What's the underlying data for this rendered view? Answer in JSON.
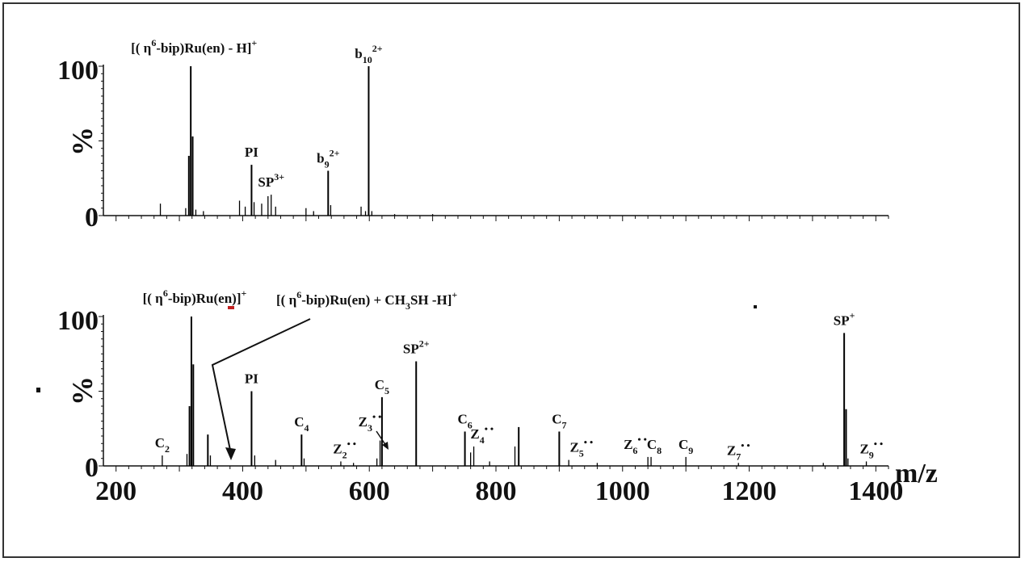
{
  "chart_data": [
    {
      "type": "bar",
      "xlabel": "",
      "ylabel": "%",
      "xlim": [
        180,
        1420
      ],
      "ylim": [
        0,
        100
      ],
      "yticks": [
        "0",
        "100"
      ],
      "peaks": [
        {
          "x": 270,
          "y": 8
        },
        {
          "x": 310,
          "y": 5
        },
        {
          "x": 315,
          "y": 40
        },
        {
          "x": 318,
          "y": 100
        },
        {
          "x": 321,
          "y": 53
        },
        {
          "x": 326,
          "y": 4
        },
        {
          "x": 338,
          "y": 3
        },
        {
          "x": 395,
          "y": 10
        },
        {
          "x": 404,
          "y": 6
        },
        {
          "x": 414,
          "y": 34
        },
        {
          "x": 418,
          "y": 9
        },
        {
          "x": 430,
          "y": 8
        },
        {
          "x": 440,
          "y": 13
        },
        {
          "x": 445,
          "y": 14
        },
        {
          "x": 452,
          "y": 6
        },
        {
          "x": 500,
          "y": 5
        },
        {
          "x": 512,
          "y": 3
        },
        {
          "x": 535,
          "y": 30
        },
        {
          "x": 539,
          "y": 7
        },
        {
          "x": 587,
          "y": 6
        },
        {
          "x": 594,
          "y": 3
        },
        {
          "x": 599,
          "y": 100
        },
        {
          "x": 604,
          "y": 3
        },
        {
          "x": 640,
          "y": 1
        },
        {
          "x": 700,
          "y": 1
        }
      ],
      "annotations": [
        {
          "x": 318,
          "y": 100,
          "base": "[( η",
          "sup": "6",
          "tail": "-bip)Ru(en) -  H]",
          "tailsup": "+"
        },
        {
          "x": 414,
          "y": 34,
          "base": "PI"
        },
        {
          "x": 445,
          "y": 14,
          "base": "SP",
          "sup": "3+"
        },
        {
          "x": 535,
          "y": 30,
          "base": "b",
          "sub": "9",
          "sup": "2+"
        },
        {
          "x": 599,
          "y": 100,
          "base": "b",
          "sub": "10",
          "sup": "2+"
        }
      ]
    },
    {
      "type": "bar",
      "xlabel": "m/z",
      "ylabel": "%",
      "xlim": [
        180,
        1420
      ],
      "ylim": [
        0,
        100
      ],
      "yticks": [
        "0",
        "100"
      ],
      "xticks": [
        "200",
        "400",
        "600",
        "800",
        "1000",
        "1200",
        "1400"
      ],
      "peaks": [
        {
          "x": 273,
          "y": 7
        },
        {
          "x": 312,
          "y": 8
        },
        {
          "x": 316,
          "y": 40
        },
        {
          "x": 319,
          "y": 100
        },
        {
          "x": 322,
          "y": 68
        },
        {
          "x": 345,
          "y": 21
        },
        {
          "x": 349,
          "y": 7
        },
        {
          "x": 414,
          "y": 50
        },
        {
          "x": 419,
          "y": 7
        },
        {
          "x": 452,
          "y": 4
        },
        {
          "x": 493,
          "y": 21
        },
        {
          "x": 497,
          "y": 5
        },
        {
          "x": 555,
          "y": 3
        },
        {
          "x": 575,
          "y": 2
        },
        {
          "x": 612,
          "y": 5
        },
        {
          "x": 617,
          "y": 17
        },
        {
          "x": 620,
          "y": 46
        },
        {
          "x": 674,
          "y": 70
        },
        {
          "x": 751,
          "y": 23
        },
        {
          "x": 760,
          "y": 9
        },
        {
          "x": 765,
          "y": 13
        },
        {
          "x": 790,
          "y": 3
        },
        {
          "x": 830,
          "y": 13
        },
        {
          "x": 836,
          "y": 26
        },
        {
          "x": 900,
          "y": 23
        },
        {
          "x": 915,
          "y": 4
        },
        {
          "x": 960,
          "y": 2
        },
        {
          "x": 1040,
          "y": 6
        },
        {
          "x": 1045,
          "y": 6
        },
        {
          "x": 1100,
          "y": 6
        },
        {
          "x": 1183,
          "y": 2
        },
        {
          "x": 1317,
          "y": 2
        },
        {
          "x": 1350,
          "y": 89
        },
        {
          "x": 1353,
          "y": 38
        },
        {
          "x": 1356,
          "y": 5
        },
        {
          "x": 1385,
          "y": 3
        }
      ],
      "annotations": [
        {
          "x": 319,
          "y": 100,
          "base": "[( η",
          "sup": "6",
          "tail": "-bip)Ru(en)]",
          "tailsup": "+"
        },
        {
          "x": 414,
          "y": 50,
          "base": "PI"
        },
        {
          "x": 273,
          "y": 7,
          "base": "C",
          "sub": "2"
        },
        {
          "x": 493,
          "y": 21,
          "base": "C",
          "sub": "4"
        },
        {
          "x": 561,
          "y": 3,
          "base": "Z",
          "sub": "2",
          "sup": "• •"
        },
        {
          "x": 601,
          "y": 21,
          "base": "Z",
          "sub": "3",
          "sup": "• •"
        },
        {
          "x": 620,
          "y": 46,
          "base": "C",
          "sub": "5"
        },
        {
          "x": 674,
          "y": 70,
          "base": "SP",
          "sup": "2+"
        },
        {
          "x": 751,
          "y": 23,
          "base": "C",
          "sub": "6"
        },
        {
          "x": 778,
          "y": 13,
          "base": "Z",
          "sub": "4",
          "sup": "• •"
        },
        {
          "x": 900,
          "y": 23,
          "base": "C",
          "sub": "7"
        },
        {
          "x": 935,
          "y": 4,
          "base": "Z",
          "sub": "5",
          "sup": "• •"
        },
        {
          "x": 1020,
          "y": 6,
          "base": "Z",
          "sub": "6",
          "sup": "• •"
        },
        {
          "x": 1050,
          "y": 6,
          "base": "C",
          "sub": "8"
        },
        {
          "x": 1100,
          "y": 6,
          "base": "C",
          "sub": "9"
        },
        {
          "x": 1183,
          "y": 2,
          "base": "Z",
          "sub": "7",
          "sup": "• •"
        },
        {
          "x": 1350,
          "y": 89,
          "base": "SP",
          "sup": "+"
        },
        {
          "x": 1393,
          "y": 3,
          "base": "Z",
          "sub": "9",
          "sup": "• •"
        }
      ],
      "callout": {
        "base": "[( η",
        "sup": "6",
        "tail": "-bip)Ru(en) + CH",
        "sub": "3",
        "tail2": "SH -H]",
        "tailsup": "+"
      }
    }
  ]
}
